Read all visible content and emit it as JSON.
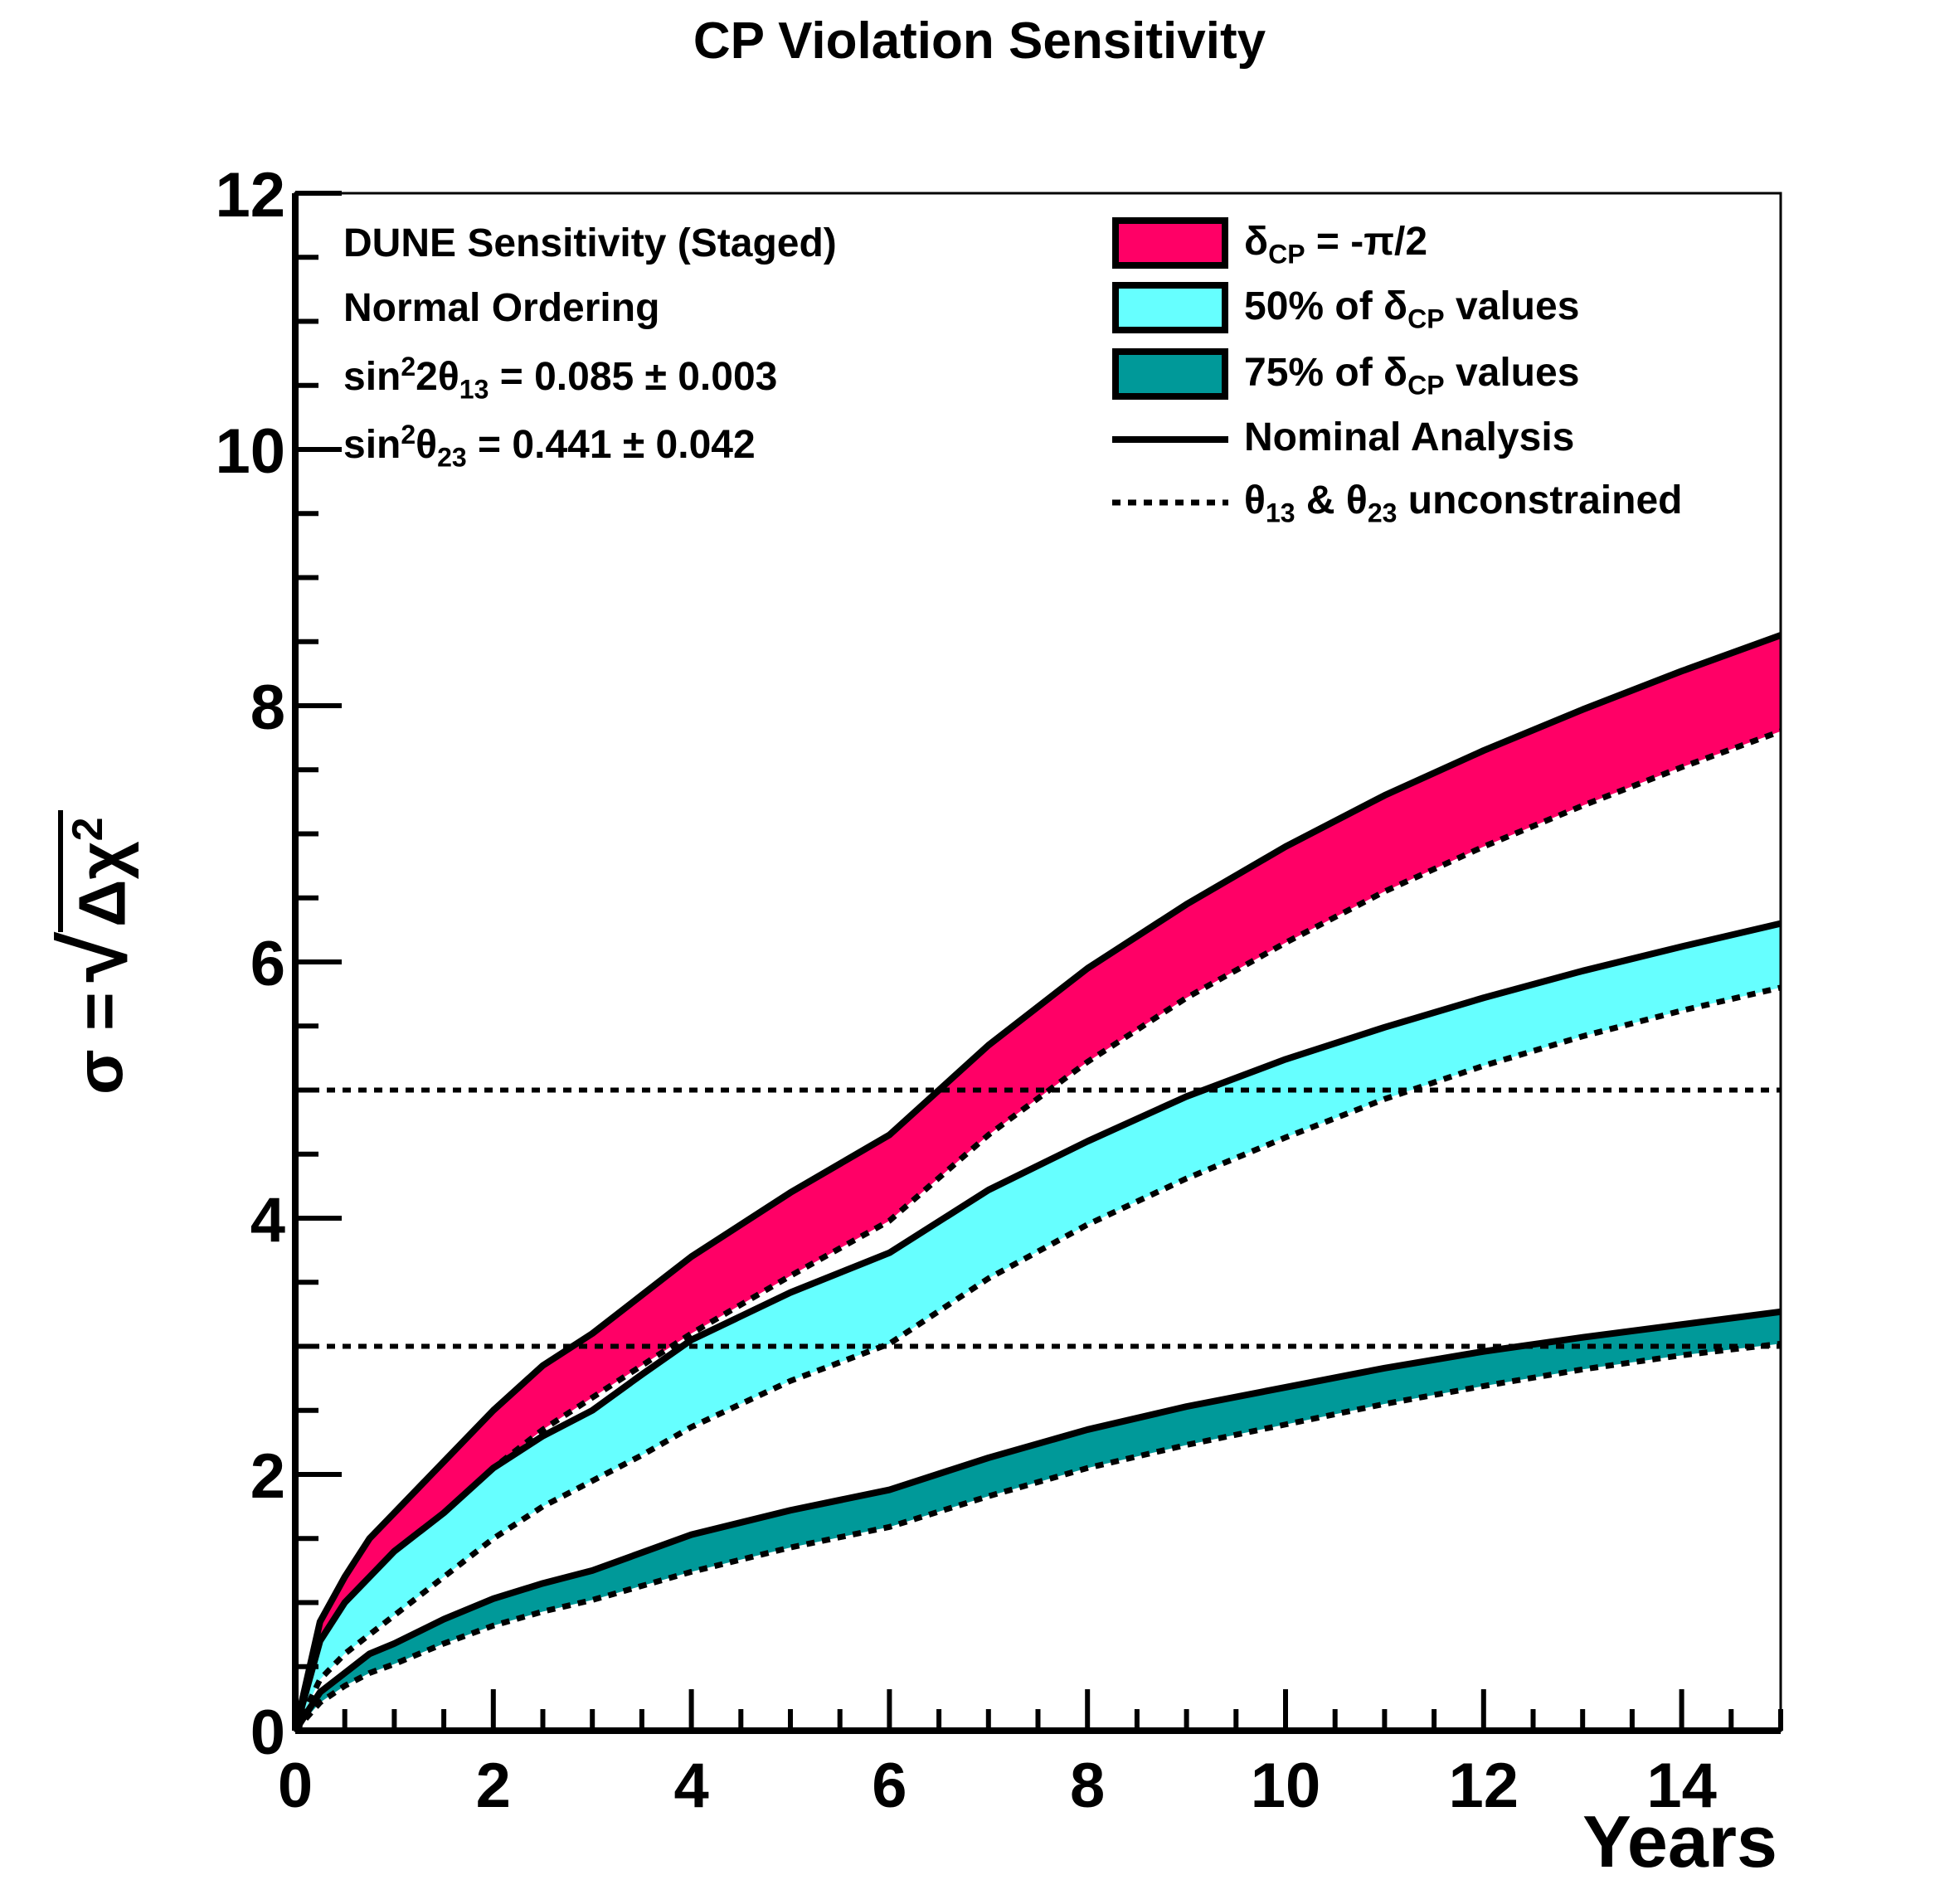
{
  "chart_data": {
    "type": "area",
    "title": "CP Violation Sensitivity",
    "xlabel": "Years",
    "ylabel_prefix": "σ =",
    "ylabel_radicand": "Δχ",
    "ylabel_exponent": "2",
    "xlim": [
      0,
      15
    ],
    "ylim": [
      0,
      12
    ],
    "x_ticks": [
      "0",
      "2",
      "4",
      "6",
      "8",
      "10",
      "12",
      "14"
    ],
    "y_ticks": [
      "0",
      "2",
      "4",
      "6",
      "8",
      "10",
      "12"
    ],
    "x_tick_values": [
      0,
      2,
      4,
      6,
      8,
      10,
      12,
      14
    ],
    "y_tick_values": [
      0,
      2,
      4,
      6,
      8,
      10,
      12
    ],
    "reference_lines": [
      3,
      5
    ],
    "annotations": {
      "line1": "DUNE Sensitivity (Staged)",
      "line2": "Normal Ordering",
      "line3_sin": "sin",
      "line3_sup": "2",
      "line3_theta": "2θ",
      "line3_sub": "13",
      "line3_value": " = 0.085 ± 0.003",
      "line4_sin": "sin",
      "line4_sup": "2",
      "line4_theta": "θ",
      "line4_sub": "23",
      "line4_value": " = 0.441 ± 0.042"
    },
    "legend": {
      "placement": "top-right",
      "entry1_sym": "δ",
      "entry1_sub": "CP",
      "entry1_text": " = -π/2",
      "entry2_pre": "50% of  δ",
      "entry2_sub": "CP",
      "entry2_post": " values",
      "entry3_pre": "75% of  δ",
      "entry3_sub": "CP",
      "entry3_post": " values",
      "entry4": "Nominal Analysis",
      "entry5_a": "θ",
      "entry5_a_sub": "13",
      "entry5_mid": " &  θ",
      "entry5_b_sub": "23",
      "entry5_post": " unconstrained"
    },
    "x": [
      0,
      0.25,
      0.5,
      0.75,
      1,
      1.5,
      2,
      2.5,
      3,
      3.5,
      4,
      5,
      6,
      7,
      8,
      9,
      10,
      11,
      12,
      13,
      14,
      15
    ],
    "series": [
      {
        "key": "dcp_minus_pi_half",
        "color": "#ff0066",
        "upper": [
          0,
          0.85,
          1.2,
          1.5,
          1.7,
          2.1,
          2.5,
          2.85,
          3.1,
          3.4,
          3.7,
          4.2,
          4.65,
          5.35,
          5.95,
          6.45,
          6.9,
          7.3,
          7.65,
          7.97,
          8.27,
          8.55
        ],
        "lower": [
          0,
          0.6,
          0.95,
          1.15,
          1.35,
          1.7,
          2.05,
          2.35,
          2.6,
          2.85,
          3.1,
          3.55,
          3.98,
          4.65,
          5.22,
          5.72,
          6.15,
          6.55,
          6.9,
          7.22,
          7.52,
          7.8
        ]
      },
      {
        "key": "fifty_percent",
        "color": "#66ffff",
        "upper": [
          0,
          0.7,
          1.0,
          1.2,
          1.4,
          1.7,
          2.05,
          2.3,
          2.5,
          2.78,
          3.05,
          3.42,
          3.73,
          4.22,
          4.6,
          4.95,
          5.24,
          5.49,
          5.72,
          5.93,
          6.12,
          6.3
        ],
        "lower": [
          0,
          0.4,
          0.6,
          0.75,
          0.9,
          1.2,
          1.5,
          1.75,
          1.95,
          2.15,
          2.37,
          2.73,
          3.02,
          3.53,
          3.95,
          4.31,
          4.63,
          4.93,
          5.19,
          5.42,
          5.62,
          5.8
        ]
      },
      {
        "key": "seventy_five_percent",
        "color": "#009999",
        "upper": [
          0,
          0.3,
          0.45,
          0.6,
          0.68,
          0.87,
          1.03,
          1.15,
          1.25,
          1.39,
          1.53,
          1.72,
          1.88,
          2.13,
          2.35,
          2.53,
          2.68,
          2.83,
          2.96,
          3.07,
          3.17,
          3.27
        ],
        "lower": [
          0,
          0.22,
          0.35,
          0.45,
          0.52,
          0.68,
          0.82,
          0.93,
          1.02,
          1.13,
          1.24,
          1.43,
          1.59,
          1.83,
          2.05,
          2.23,
          2.39,
          2.55,
          2.69,
          2.82,
          2.93,
          3.02
        ]
      }
    ]
  }
}
